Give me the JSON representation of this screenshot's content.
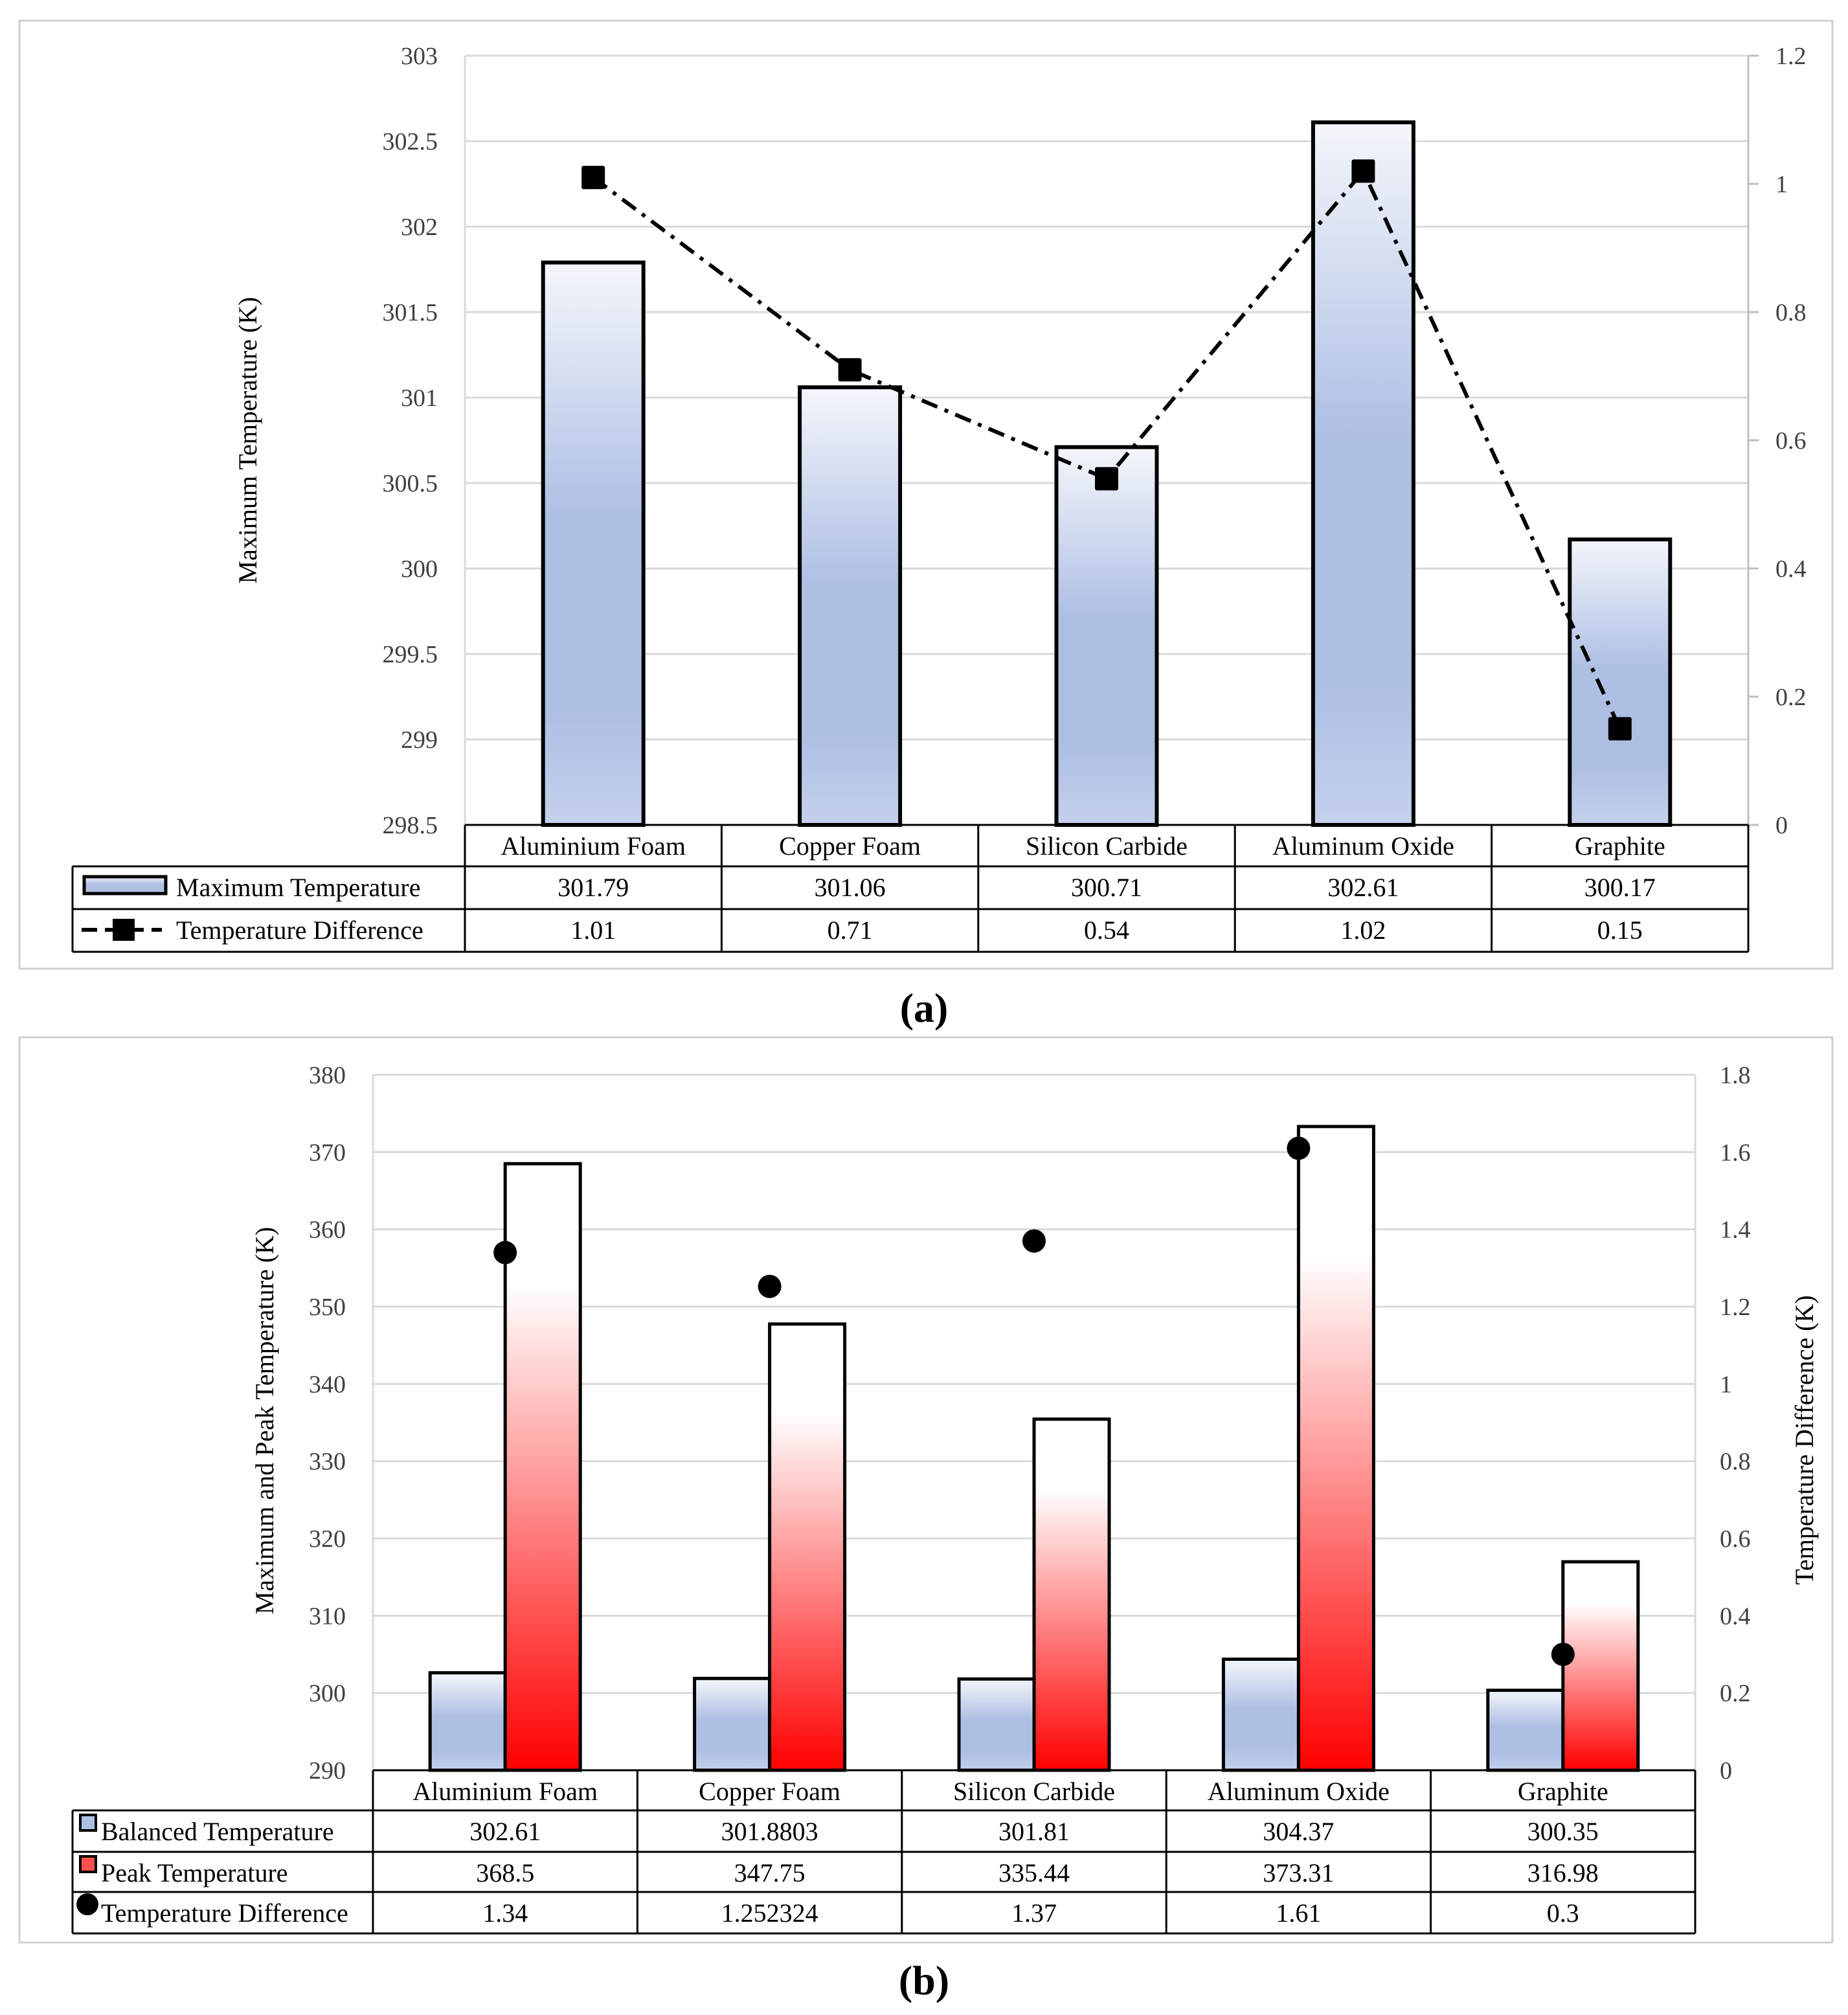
{
  "colors": {
    "blue_bar_top": "#f4f6fb",
    "blue_bar_mid": "#aebfe4",
    "red_bar_top": "#ffffff",
    "red_bar_bottom": "#ff0000",
    "grid": "#d9d9d9",
    "frame": "#d0d0d0",
    "outline": "#000000"
  },
  "chart_data": [
    {
      "type": "bar",
      "panel_label": "(a)",
      "categories": [
        "Aluminium Foam",
        "Copper Foam",
        "Silicon Carbide",
        "Aluminum Oxide",
        "Graphite"
      ],
      "ylabel": "Maximum Temperature (K)",
      "ylabel_right": "",
      "ylim": [
        298.5,
        303
      ],
      "y_ticks": [
        "298.5",
        "299",
        "299.5",
        "300",
        "300.5",
        "301",
        "301.5",
        "302",
        "302.5",
        "303"
      ],
      "y2lim": [
        0,
        1.2
      ],
      "y2_ticks": [
        "0",
        "0.2",
        "0.4",
        "0.6",
        "0.8",
        "1",
        "1.2"
      ],
      "grid": true,
      "series": [
        {
          "name": "Maximum Temperature",
          "kind": "bar",
          "axis": "left",
          "values": [
            301.79,
            301.06,
            300.71,
            302.61,
            300.17
          ],
          "labels": [
            "301.79",
            "301.06",
            "300.71",
            "302.61",
            "300.17"
          ]
        },
        {
          "name": "Temperature Difference",
          "kind": "line-square-dashdot",
          "axis": "right",
          "values": [
            1.01,
            0.71,
            0.54,
            1.02,
            0.15
          ],
          "labels": [
            "1.01",
            "0.71",
            "0.54",
            "1.02",
            "0.15"
          ]
        }
      ]
    },
    {
      "type": "bar",
      "panel_label": "(b)",
      "categories": [
        "Aluminium Foam",
        "Copper Foam",
        "Silicon Carbide",
        "Aluminum Oxide",
        "Graphite"
      ],
      "ylabel": "Maximum and Peak Temperature (K)",
      "ylabel_right": "Temperature Difference (K)",
      "ylim": [
        290,
        380
      ],
      "y_ticks": [
        "290",
        "300",
        "310",
        "320",
        "330",
        "340",
        "350",
        "360",
        "370",
        "380"
      ],
      "y2lim": [
        0,
        1.8
      ],
      "y2_ticks": [
        "0",
        "0.2",
        "0.4",
        "0.6",
        "0.8",
        "1",
        "1.2",
        "1.4",
        "1.6",
        "1.8"
      ],
      "grid": true,
      "series": [
        {
          "name": "Balanced Temperature",
          "kind": "bar-blue",
          "axis": "left",
          "values": [
            302.61,
            301.8803,
            301.81,
            304.37,
            300.35
          ],
          "labels": [
            "302.61",
            "301.8803",
            "301.81",
            "304.37",
            "300.35"
          ]
        },
        {
          "name": "Peak Temperature",
          "kind": "bar-red",
          "axis": "left",
          "values": [
            368.5,
            347.75,
            335.44,
            373.31,
            316.98
          ],
          "labels": [
            "368.5",
            "347.75",
            "335.44",
            "373.31",
            "316.98"
          ]
        },
        {
          "name": "Temperature Difference",
          "kind": "dot",
          "axis": "right",
          "values": [
            1.34,
            1.252324,
            1.37,
            1.61,
            0.3
          ],
          "labels": [
            "1.34",
            "1.252324",
            "1.37",
            "1.61",
            "0.3"
          ]
        }
      ]
    }
  ]
}
